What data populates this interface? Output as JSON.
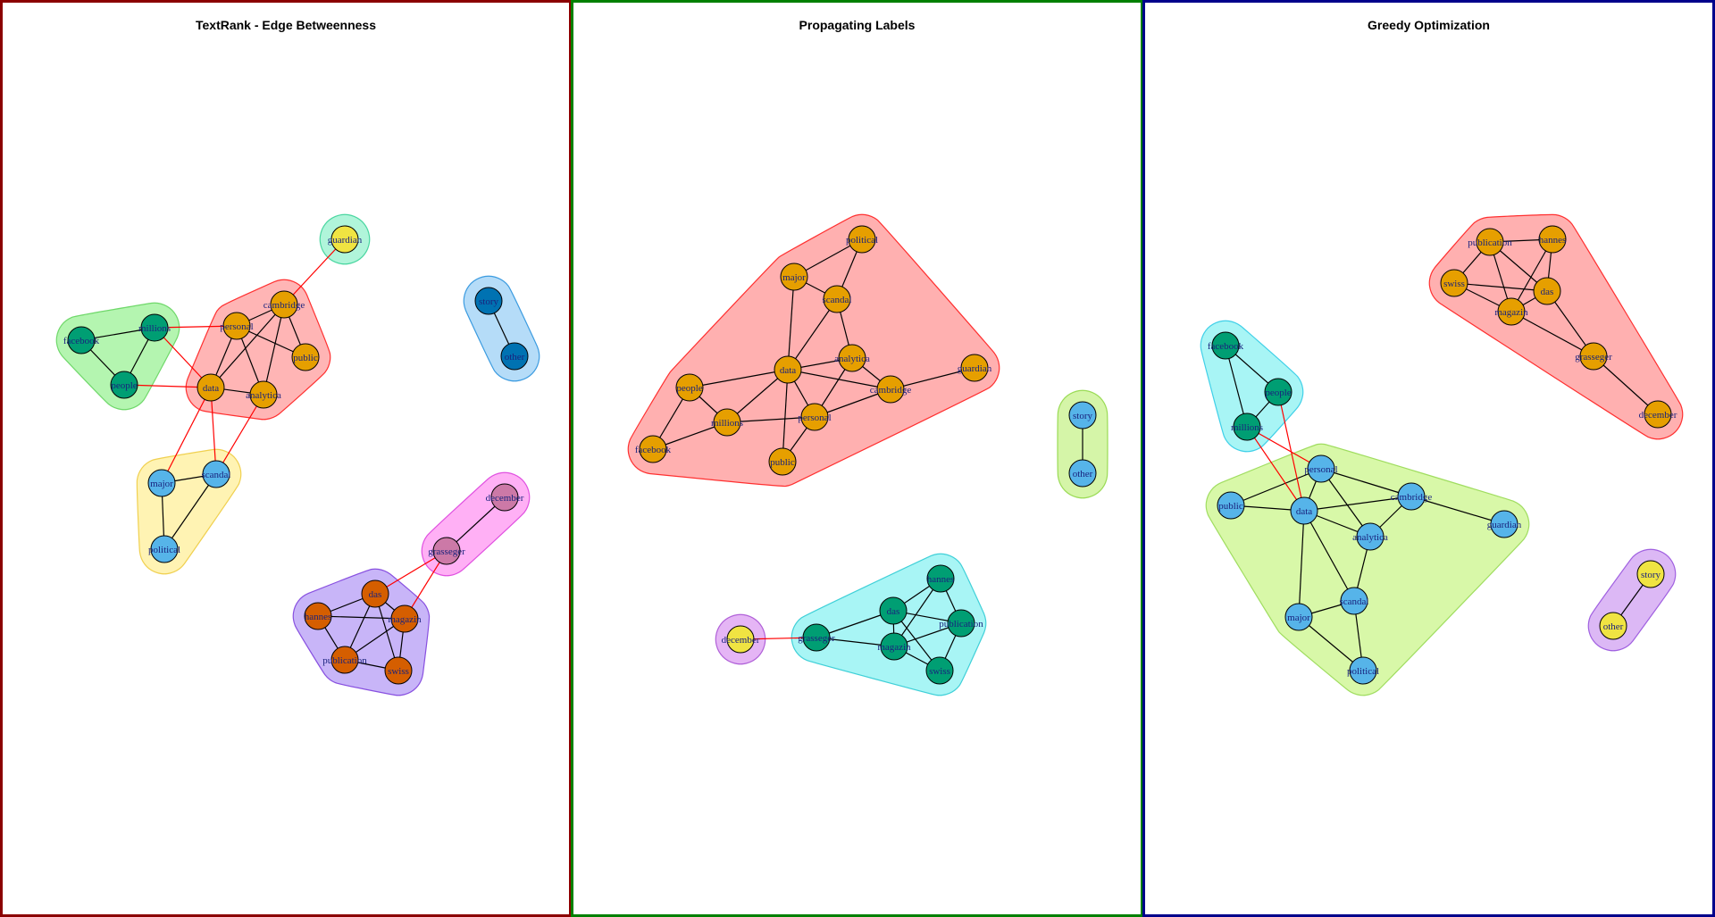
{
  "panels": [
    {
      "title": "TextRank - Edge Betweenness",
      "border_color": "#8b0000",
      "groups": [
        {
          "fill": "#b4f5b0",
          "stroke": "#6fd86a",
          "nodes": [
            "facebook",
            "millions",
            "people"
          ]
        },
        {
          "fill": "#ffb5b5",
          "stroke": "#ff3030",
          "nodes": [
            "personal",
            "cambridge",
            "public",
            "data",
            "analytica"
          ]
        },
        {
          "fill": "#b0f5da",
          "stroke": "#49d6a0",
          "nodes": [
            "guardian"
          ]
        },
        {
          "fill": "#b5dcf8",
          "stroke": "#3b9be0",
          "nodes": [
            "story",
            "other"
          ]
        },
        {
          "fill": "#fff3b3",
          "stroke": "#f0d050",
          "nodes": [
            "major",
            "scandal",
            "political"
          ]
        },
        {
          "fill": "#ffb0f5",
          "stroke": "#e050e0",
          "nodes": [
            "december",
            "grasseger"
          ]
        },
        {
          "fill": "#c8b5f8",
          "stroke": "#8850e0",
          "nodes": [
            "das",
            "hannes",
            "magazin",
            "publication",
            "swiss"
          ]
        }
      ],
      "nodes": [
        {
          "id": "guardian",
          "label": "guardian",
          "color": "#f0e442"
        },
        {
          "id": "cambridge",
          "label": "cambridge",
          "color": "#e69f00"
        },
        {
          "id": "personal",
          "label": "personal",
          "color": "#e69f00"
        },
        {
          "id": "public",
          "label": "public",
          "color": "#e69f00"
        },
        {
          "id": "data",
          "label": "data",
          "color": "#e69f00"
        },
        {
          "id": "analytica",
          "label": "analytica",
          "color": "#e69f00"
        },
        {
          "id": "millions",
          "label": "millions",
          "color": "#009e73"
        },
        {
          "id": "facebook",
          "label": "facebook",
          "color": "#009e73"
        },
        {
          "id": "people",
          "label": "people",
          "color": "#009e73"
        },
        {
          "id": "story",
          "label": "story",
          "color": "#0072b2"
        },
        {
          "id": "other",
          "label": "other",
          "color": "#0072b2"
        },
        {
          "id": "major",
          "label": "major",
          "color": "#56b4e9"
        },
        {
          "id": "scandal",
          "label": "scandal",
          "color": "#56b4e9"
        },
        {
          "id": "political",
          "label": "political",
          "color": "#56b4e9"
        },
        {
          "id": "december",
          "label": "december",
          "color": "#cc79a7"
        },
        {
          "id": "grasseger",
          "label": "grasseger",
          "color": "#cc79a7"
        },
        {
          "id": "das",
          "label": "das",
          "color": "#d55e00"
        },
        {
          "id": "hannes",
          "label": "hannes",
          "color": "#d55e00"
        },
        {
          "id": "magazin",
          "label": "magazin",
          "color": "#d55e00"
        },
        {
          "id": "publication",
          "label": "publication",
          "color": "#d55e00"
        },
        {
          "id": "swiss",
          "label": "swiss",
          "color": "#d55e00"
        }
      ],
      "edges": [
        [
          "facebook",
          "millions",
          "#000000"
        ],
        [
          "facebook",
          "people",
          "#000000"
        ],
        [
          "millions",
          "people",
          "#000000"
        ],
        [
          "personal",
          "cambridge",
          "#000000"
        ],
        [
          "personal",
          "public",
          "#000000"
        ],
        [
          "personal",
          "data",
          "#000000"
        ],
        [
          "personal",
          "analytica",
          "#000000"
        ],
        [
          "cambridge",
          "public",
          "#000000"
        ],
        [
          "cambridge",
          "data",
          "#000000"
        ],
        [
          "cambridge",
          "analytica",
          "#000000"
        ],
        [
          "data",
          "analytica",
          "#000000"
        ],
        [
          "story",
          "other",
          "#000000"
        ],
        [
          "major",
          "scandal",
          "#000000"
        ],
        [
          "major",
          "political",
          "#000000"
        ],
        [
          "scandal",
          "political",
          "#000000"
        ],
        [
          "december",
          "grasseger",
          "#000000"
        ],
        [
          "das",
          "hannes",
          "#000000"
        ],
        [
          "das",
          "magazin",
          "#000000"
        ],
        [
          "das",
          "publication",
          "#000000"
        ],
        [
          "das",
          "swiss",
          "#000000"
        ],
        [
          "hannes",
          "magazin",
          "#000000"
        ],
        [
          "hannes",
          "publication",
          "#000000"
        ],
        [
          "magazin",
          "publication",
          "#000000"
        ],
        [
          "magazin",
          "swiss",
          "#000000"
        ],
        [
          "publication",
          "swiss",
          "#000000"
        ],
        [
          "guardian",
          "cambridge",
          "#ff0000"
        ],
        [
          "millions",
          "personal",
          "#ff0000"
        ],
        [
          "millions",
          "data",
          "#ff0000"
        ],
        [
          "people",
          "data",
          "#ff0000"
        ],
        [
          "data",
          "major",
          "#ff0000"
        ],
        [
          "data",
          "scandal",
          "#ff0000"
        ],
        [
          "analytica",
          "scandal",
          "#ff0000"
        ],
        [
          "grasseger",
          "das",
          "#ff0000"
        ],
        [
          "grasseger",
          "magazin",
          "#ff0000"
        ]
      ]
    },
    {
      "title": "Propagating Labels",
      "border_color": "#008000",
      "groups": [
        {
          "fill": "#ffb0b0",
          "stroke": "#ff3030",
          "nodes": [
            "political",
            "major",
            "scandal",
            "analytica",
            "data",
            "guardian",
            "cambridge",
            "people",
            "personal",
            "millions",
            "facebook",
            "public"
          ]
        },
        {
          "fill": "#d5f5a8",
          "stroke": "#9adb55",
          "nodes": [
            "story",
            "other"
          ]
        },
        {
          "fill": "#e5b5f5",
          "stroke": "#b060d8",
          "nodes": [
            "december"
          ]
        },
        {
          "fill": "#a8f5f5",
          "stroke": "#40d0d8",
          "nodes": [
            "hannes",
            "das",
            "publication",
            "grasseger",
            "magazin",
            "swiss"
          ]
        }
      ],
      "nodes": [
        {
          "id": "political",
          "label": "political",
          "color": "#e69f00"
        },
        {
          "id": "major",
          "label": "major",
          "color": "#e69f00"
        },
        {
          "id": "scandal",
          "label": "scandal",
          "color": "#e69f00"
        },
        {
          "id": "analytica",
          "label": "analytica",
          "color": "#e69f00"
        },
        {
          "id": "data",
          "label": "data",
          "color": "#e69f00"
        },
        {
          "id": "guardian",
          "label": "guardian",
          "color": "#e69f00"
        },
        {
          "id": "cambridge",
          "label": "cambridge",
          "color": "#e69f00"
        },
        {
          "id": "people",
          "label": "people",
          "color": "#e69f00"
        },
        {
          "id": "personal",
          "label": "personal",
          "color": "#e69f00"
        },
        {
          "id": "millions",
          "label": "millions",
          "color": "#e69f00"
        },
        {
          "id": "facebook",
          "label": "facebook",
          "color": "#e69f00"
        },
        {
          "id": "public",
          "label": "public",
          "color": "#e69f00"
        },
        {
          "id": "story",
          "label": "story",
          "color": "#56b4e9"
        },
        {
          "id": "other",
          "label": "other",
          "color": "#56b4e9"
        },
        {
          "id": "hannes",
          "label": "hannes",
          "color": "#009e73"
        },
        {
          "id": "das",
          "label": "das",
          "color": "#009e73"
        },
        {
          "id": "publication",
          "label": "publication",
          "color": "#009e73"
        },
        {
          "id": "december",
          "label": "december",
          "color": "#f0e442"
        },
        {
          "id": "grasseger",
          "label": "grasseger",
          "color": "#009e73"
        },
        {
          "id": "magazin",
          "label": "magazin",
          "color": "#009e73"
        },
        {
          "id": "swiss",
          "label": "swiss",
          "color": "#009e73"
        }
      ],
      "edges": [
        [
          "major",
          "political",
          "#000000"
        ],
        [
          "scandal",
          "political",
          "#000000"
        ],
        [
          "major",
          "scandal",
          "#000000"
        ],
        [
          "major",
          "data",
          "#000000"
        ],
        [
          "scandal",
          "analytica",
          "#000000"
        ],
        [
          "scandal",
          "data",
          "#000000"
        ],
        [
          "data",
          "analytica",
          "#000000"
        ],
        [
          "analytica",
          "cambridge",
          "#000000"
        ],
        [
          "analytica",
          "personal",
          "#000000"
        ],
        [
          "data",
          "cambridge",
          "#000000"
        ],
        [
          "data",
          "personal",
          "#000000"
        ],
        [
          "data",
          "people",
          "#000000"
        ],
        [
          "data",
          "millions",
          "#000000"
        ],
        [
          "data",
          "public",
          "#000000"
        ],
        [
          "cambridge",
          "guardian",
          "#000000"
        ],
        [
          "cambridge",
          "personal",
          "#000000"
        ],
        [
          "people",
          "millions",
          "#000000"
        ],
        [
          "people",
          "facebook",
          "#000000"
        ],
        [
          "millions",
          "facebook",
          "#000000"
        ],
        [
          "millions",
          "personal",
          "#000000"
        ],
        [
          "personal",
          "public",
          "#000000"
        ],
        [
          "story",
          "other",
          "#000000"
        ],
        [
          "hannes",
          "das",
          "#000000"
        ],
        [
          "hannes",
          "publication",
          "#000000"
        ],
        [
          "hannes",
          "magazin",
          "#000000"
        ],
        [
          "das",
          "publication",
          "#000000"
        ],
        [
          "das",
          "magazin",
          "#000000"
        ],
        [
          "das",
          "grasseger",
          "#000000"
        ],
        [
          "das",
          "swiss",
          "#000000"
        ],
        [
          "publication",
          "magazin",
          "#000000"
        ],
        [
          "publication",
          "swiss",
          "#000000"
        ],
        [
          "magazin",
          "swiss",
          "#000000"
        ],
        [
          "grasseger",
          "magazin",
          "#000000"
        ],
        [
          "december",
          "grasseger",
          "#ff0000"
        ]
      ]
    },
    {
      "title": "Greedy Optimization",
      "border_color": "#00008b",
      "groups": [
        {
          "fill": "#ffb0b0",
          "stroke": "#ff3030",
          "nodes": [
            "publication",
            "hannes",
            "swiss",
            "das",
            "magazin",
            "grasseger",
            "december"
          ]
        },
        {
          "fill": "#a8f5f5",
          "stroke": "#40d0e8",
          "nodes": [
            "facebook",
            "people",
            "millions"
          ]
        },
        {
          "fill": "#d8f8a8",
          "stroke": "#a0dd60",
          "nodes": [
            "personal",
            "public",
            "data",
            "cambridge",
            "guardian",
            "analytica",
            "scandal",
            "major",
            "political"
          ]
        },
        {
          "fill": "#dcb8f5",
          "stroke": "#a060e0",
          "nodes": [
            "story",
            "other"
          ]
        }
      ],
      "nodes": [
        {
          "id": "publication",
          "label": "publication",
          "color": "#e69f00"
        },
        {
          "id": "hannes",
          "label": "hannes",
          "color": "#e69f00"
        },
        {
          "id": "swiss",
          "label": "swiss",
          "color": "#e69f00"
        },
        {
          "id": "das",
          "label": "das",
          "color": "#e69f00"
        },
        {
          "id": "magazin",
          "label": "magazin",
          "color": "#e69f00"
        },
        {
          "id": "grasseger",
          "label": "grasseger",
          "color": "#e69f00"
        },
        {
          "id": "december",
          "label": "december",
          "color": "#e69f00"
        },
        {
          "id": "facebook",
          "label": "facebook",
          "color": "#009e73"
        },
        {
          "id": "people",
          "label": "people",
          "color": "#009e73"
        },
        {
          "id": "millions",
          "label": "millions",
          "color": "#009e73"
        },
        {
          "id": "personal",
          "label": "personal",
          "color": "#56b4e9"
        },
        {
          "id": "public",
          "label": "public",
          "color": "#56b4e9"
        },
        {
          "id": "data",
          "label": "data",
          "color": "#56b4e9"
        },
        {
          "id": "cambridge",
          "label": "cambridge",
          "color": "#56b4e9"
        },
        {
          "id": "guardian",
          "label": "guardian",
          "color": "#56b4e9"
        },
        {
          "id": "analytica",
          "label": "analytica",
          "color": "#56b4e9"
        },
        {
          "id": "scandal",
          "label": "scandal",
          "color": "#56b4e9"
        },
        {
          "id": "major",
          "label": "major",
          "color": "#56b4e9"
        },
        {
          "id": "political",
          "label": "political",
          "color": "#56b4e9"
        },
        {
          "id": "story",
          "label": "story",
          "color": "#f0e442"
        },
        {
          "id": "other",
          "label": "other",
          "color": "#f0e442"
        }
      ],
      "edges": [
        [
          "publication",
          "hannes",
          "#000000"
        ],
        [
          "publication",
          "swiss",
          "#000000"
        ],
        [
          "publication",
          "das",
          "#000000"
        ],
        [
          "publication",
          "magazin",
          "#000000"
        ],
        [
          "hannes",
          "das",
          "#000000"
        ],
        [
          "hannes",
          "magazin",
          "#000000"
        ],
        [
          "swiss",
          "das",
          "#000000"
        ],
        [
          "swiss",
          "magazin",
          "#000000"
        ],
        [
          "das",
          "magazin",
          "#000000"
        ],
        [
          "das",
          "grasseger",
          "#000000"
        ],
        [
          "magazin",
          "grasseger",
          "#000000"
        ],
        [
          "grasseger",
          "december",
          "#000000"
        ],
        [
          "facebook",
          "people",
          "#000000"
        ],
        [
          "facebook",
          "millions",
          "#000000"
        ],
        [
          "people",
          "millions",
          "#000000"
        ],
        [
          "personal",
          "public",
          "#000000"
        ],
        [
          "personal",
          "data",
          "#000000"
        ],
        [
          "personal",
          "cambridge",
          "#000000"
        ],
        [
          "personal",
          "analytica",
          "#000000"
        ],
        [
          "public",
          "data",
          "#000000"
        ],
        [
          "data",
          "cambridge",
          "#000000"
        ],
        [
          "data",
          "analytica",
          "#000000"
        ],
        [
          "data",
          "scandal",
          "#000000"
        ],
        [
          "data",
          "major",
          "#000000"
        ],
        [
          "cambridge",
          "guardian",
          "#000000"
        ],
        [
          "cambridge",
          "analytica",
          "#000000"
        ],
        [
          "analytica",
          "scandal",
          "#000000"
        ],
        [
          "scandal",
          "major",
          "#000000"
        ],
        [
          "scandal",
          "political",
          "#000000"
        ],
        [
          "major",
          "political",
          "#000000"
        ],
        [
          "story",
          "other",
          "#000000"
        ],
        [
          "millions",
          "data",
          "#ff0000"
        ],
        [
          "millions",
          "personal",
          "#ff0000"
        ],
        [
          "people",
          "data",
          "#ff0000"
        ]
      ]
    }
  ]
}
